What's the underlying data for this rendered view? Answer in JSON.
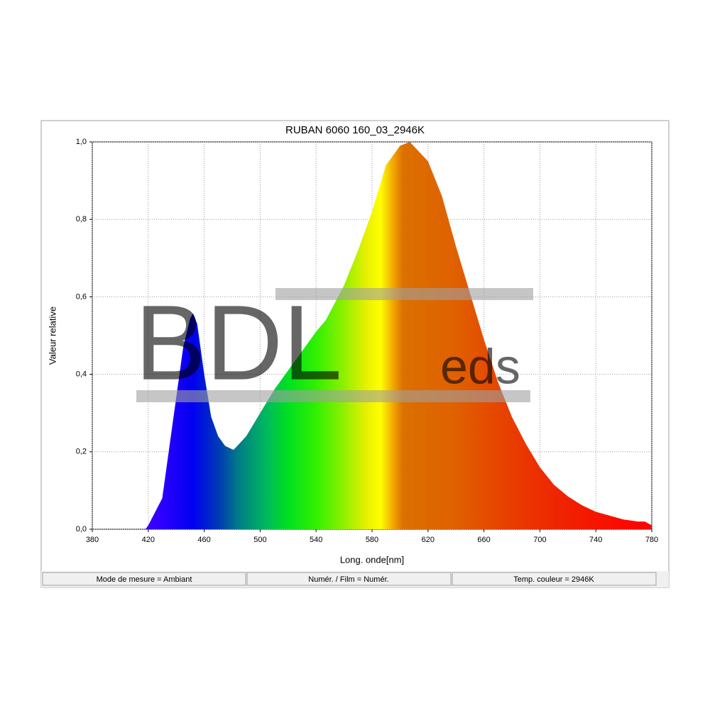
{
  "chart_data": {
    "type": "area",
    "title": "RUBAN 6060 160_03_2946K",
    "x_label": "Long. onde[nm]",
    "y_label": "Valeur relative",
    "watermark": [
      "BDL",
      "eds"
    ],
    "x": [
      418,
      420,
      430,
      440,
      445,
      450,
      452,
      455,
      460,
      465,
      470,
      475,
      481,
      490,
      500,
      510,
      520,
      530,
      540,
      547,
      560,
      570,
      580,
      590,
      600,
      607,
      620,
      630,
      640,
      650,
      660,
      670,
      680,
      690,
      700,
      710,
      720,
      730,
      740,
      750,
      760,
      770,
      775,
      780
    ],
    "values": [
      0,
      0.01,
      0.08,
      0.34,
      0.47,
      0.545,
      0.557,
      0.53,
      0.4,
      0.29,
      0.24,
      0.215,
      0.205,
      0.24,
      0.3,
      0.36,
      0.41,
      0.46,
      0.51,
      0.54,
      0.63,
      0.72,
      0.82,
      0.94,
      0.99,
      1.0,
      0.95,
      0.86,
      0.73,
      0.61,
      0.49,
      0.38,
      0.29,
      0.22,
      0.16,
      0.115,
      0.085,
      0.062,
      0.045,
      0.035,
      0.025,
      0.02,
      0.02,
      0.01
    ],
    "xlim": [
      380,
      780
    ],
    "xticks": [
      380,
      420,
      460,
      500,
      540,
      580,
      620,
      660,
      700,
      740,
      780
    ],
    "ylim": [
      0,
      1
    ],
    "yticks": [
      {
        "value": 0,
        "label": "0,0"
      },
      {
        "value": 0.2,
        "label": "0,2"
      },
      {
        "value": 0.4,
        "label": "0,4"
      },
      {
        "value": 0.6,
        "label": "0,6"
      },
      {
        "value": 0.8,
        "label": "0,8"
      },
      {
        "value": 1,
        "label": "1,0"
      }
    ],
    "grid": true
  },
  "status": [
    "Mode de mesure = Ambiant",
    "Numér. / Film = Numér.",
    "Temp. couleur = 2946K"
  ]
}
